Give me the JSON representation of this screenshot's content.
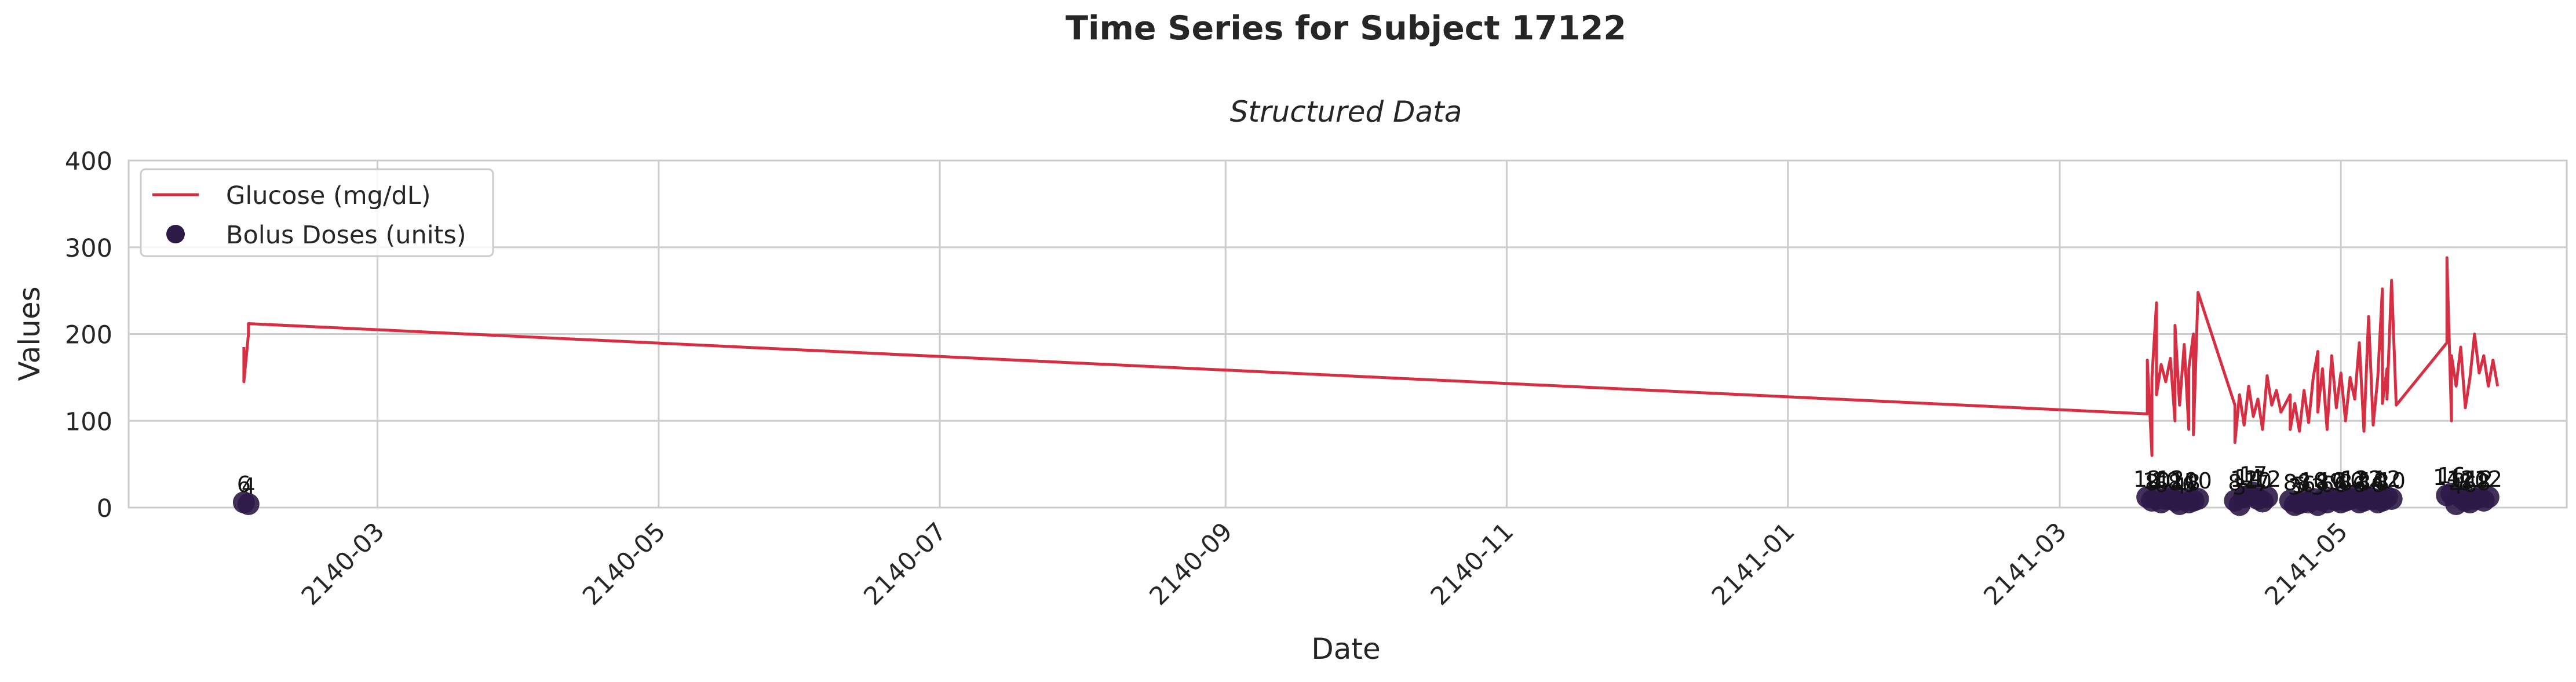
{
  "colors": {
    "glucose": "#d62f43",
    "bolus": "#2e1a47",
    "grid": "#cccccc",
    "axis": "#cccccc",
    "text": "#262626"
  },
  "chart_data": {
    "type": "line",
    "suptitle": "Time Series for Subject 17122",
    "title": "Structured Data",
    "xlabel": "Date",
    "ylabel": "Values",
    "xlim": [
      "2140-01-07",
      "2141-06-19"
    ],
    "ylim": [
      0,
      400
    ],
    "x_ticks": [
      "2140-03",
      "2140-05",
      "2140-07",
      "2140-09",
      "2140-11",
      "2141-01",
      "2141-03",
      "2141-05"
    ],
    "y_ticks": [
      "0",
      "100",
      "200",
      "300",
      "400"
    ],
    "grid": true,
    "legend": {
      "placement": "top-left",
      "entries": [
        "Glucose (mg/dL)",
        "Bolus Doses (units)"
      ]
    },
    "series": [
      {
        "name": "Glucose (mg/dL)",
        "kind": "line",
        "points": [
          [
            "2140-02-01",
            185
          ],
          [
            "2140-02-01",
            165
          ],
          [
            "2140-02-01",
            145
          ],
          [
            "2140-02-02",
            200
          ],
          [
            "2140-02-02",
            212
          ],
          [
            "2141-03-20",
            108
          ],
          [
            "2141-03-20",
            170
          ],
          [
            "2141-03-21",
            60
          ],
          [
            "2141-03-21",
            150
          ],
          [
            "2141-03-22",
            236
          ],
          [
            "2141-03-22",
            130
          ],
          [
            "2141-03-23",
            165
          ],
          [
            "2141-03-24",
            145
          ],
          [
            "2141-03-25",
            172
          ],
          [
            "2141-03-26",
            100
          ],
          [
            "2141-03-26",
            210
          ],
          [
            "2141-03-27",
            118
          ],
          [
            "2141-03-28",
            188
          ],
          [
            "2141-03-29",
            90
          ],
          [
            "2141-03-29",
            160
          ],
          [
            "2141-03-30",
            200
          ],
          [
            "2141-03-30",
            84
          ],
          [
            "2141-03-31",
            248
          ],
          [
            "2141-04-08",
            118
          ],
          [
            "2141-04-08",
            75
          ],
          [
            "2141-04-09",
            130
          ],
          [
            "2141-04-10",
            95
          ],
          [
            "2141-04-11",
            140
          ],
          [
            "2141-04-12",
            105
          ],
          [
            "2141-04-13",
            125
          ],
          [
            "2141-04-14",
            90
          ],
          [
            "2141-04-15",
            152
          ],
          [
            "2141-04-16",
            118
          ],
          [
            "2141-04-17",
            135
          ],
          [
            "2141-04-18",
            110
          ],
          [
            "2141-04-20",
            130
          ],
          [
            "2141-04-20",
            90
          ],
          [
            "2141-04-21",
            120
          ],
          [
            "2141-04-22",
            88
          ],
          [
            "2141-04-23",
            135
          ],
          [
            "2141-04-24",
            98
          ],
          [
            "2141-04-25",
            150
          ],
          [
            "2141-04-26",
            180
          ],
          [
            "2141-04-26",
            110
          ],
          [
            "2141-04-27",
            160
          ],
          [
            "2141-04-28",
            90
          ],
          [
            "2141-04-29",
            175
          ],
          [
            "2141-04-30",
            115
          ],
          [
            "2141-05-01",
            155
          ],
          [
            "2141-05-02",
            100
          ],
          [
            "2141-05-03",
            150
          ],
          [
            "2141-05-04",
            125
          ],
          [
            "2141-05-05",
            190
          ],
          [
            "2141-05-06",
            88
          ],
          [
            "2141-05-07",
            220
          ],
          [
            "2141-05-08",
            95
          ],
          [
            "2141-05-09",
            150
          ],
          [
            "2141-05-10",
            252
          ],
          [
            "2141-05-10",
            120
          ],
          [
            "2141-05-11",
            160
          ],
          [
            "2141-05-11",
            125
          ],
          [
            "2141-05-12",
            262
          ],
          [
            "2141-05-13",
            118
          ],
          [
            "2141-05-24",
            190
          ],
          [
            "2141-05-24",
            288
          ],
          [
            "2141-05-25",
            100
          ],
          [
            "2141-05-25",
            175
          ],
          [
            "2141-05-26",
            140
          ],
          [
            "2141-05-27",
            185
          ],
          [
            "2141-05-28",
            115
          ],
          [
            "2141-05-29",
            150
          ],
          [
            "2141-05-30",
            200
          ],
          [
            "2141-05-31",
            155
          ],
          [
            "2141-06-01",
            175
          ],
          [
            "2141-06-02",
            140
          ],
          [
            "2141-06-03",
            170
          ],
          [
            "2141-06-04",
            140
          ]
        ]
      },
      {
        "name": "Bolus Doses (units)",
        "kind": "scatter",
        "points": [
          [
            "2140-02-01",
            6
          ],
          [
            "2140-02-02",
            4
          ],
          [
            "2141-03-20",
            12
          ],
          [
            "2141-03-21",
            8
          ],
          [
            "2141-03-22",
            10
          ],
          [
            "2141-03-23",
            6
          ],
          [
            "2141-03-24",
            10
          ],
          [
            "2141-03-25",
            12
          ],
          [
            "2141-03-26",
            8
          ],
          [
            "2141-03-27",
            4
          ],
          [
            "2141-03-28",
            10
          ],
          [
            "2141-03-29",
            6
          ],
          [
            "2141-03-30",
            8
          ],
          [
            "2141-03-31",
            10
          ],
          [
            "2141-04-08",
            8
          ],
          [
            "2141-04-09",
            3
          ],
          [
            "2141-04-10",
            12
          ],
          [
            "2141-04-11",
            14
          ],
          [
            "2141-04-12",
            17
          ],
          [
            "2141-04-13",
            10
          ],
          [
            "2141-04-14",
            7
          ],
          [
            "2141-04-15",
            12
          ],
          [
            "2141-04-20",
            8
          ],
          [
            "2141-04-21",
            3
          ],
          [
            "2141-04-22",
            5
          ],
          [
            "2141-04-23",
            8
          ],
          [
            "2141-04-24",
            6
          ],
          [
            "2141-04-25",
            10
          ],
          [
            "2141-04-26",
            3
          ],
          [
            "2141-04-27",
            8
          ],
          [
            "2141-04-28",
            6
          ],
          [
            "2141-04-29",
            10
          ],
          [
            "2141-04-30",
            9
          ],
          [
            "2141-05-01",
            6
          ],
          [
            "2141-05-02",
            8
          ],
          [
            "2141-05-03",
            10
          ],
          [
            "2141-05-04",
            12
          ],
          [
            "2141-05-05",
            6
          ],
          [
            "2141-05-06",
            8
          ],
          [
            "2141-05-07",
            12
          ],
          [
            "2141-05-08",
            10
          ],
          [
            "2141-05-09",
            6
          ],
          [
            "2141-05-10",
            8
          ],
          [
            "2141-05-11",
            12
          ],
          [
            "2141-05-12",
            10
          ],
          [
            "2141-05-24",
            14
          ],
          [
            "2141-05-25",
            16
          ],
          [
            "2141-05-26",
            4
          ],
          [
            "2141-05-27",
            12
          ],
          [
            "2141-05-28",
            8
          ],
          [
            "2141-05-29",
            6
          ],
          [
            "2141-05-30",
            10
          ],
          [
            "2141-05-31",
            12
          ],
          [
            "2141-06-01",
            8
          ],
          [
            "2141-06-02",
            12
          ]
        ]
      }
    ]
  }
}
